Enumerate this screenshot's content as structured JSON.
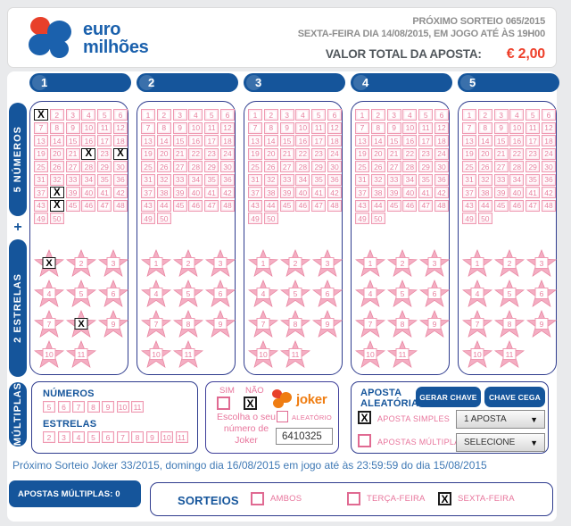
{
  "header": {
    "logo_line1": "euro",
    "logo_line2": "milhões",
    "next_draw": "PRÓXIMO SORTEIO 065/2015",
    "draw_info": "SEXTA-FEIRA DIA 14/08/2015, EM JOGO ATÉ ÀS 19H00",
    "total_label": "VALOR TOTAL DA APOSTA:",
    "total_value": "€ 2,00"
  },
  "sidebar": {
    "numbers_label": "5 NÚMEROS",
    "plus": "+",
    "stars_label": "2 ESTRELAS",
    "multiplas_label": "MÚLTIPLAS"
  },
  "board": {
    "numbers_max": 50,
    "numbers_per_row": 6,
    "stars_max": 11,
    "stars_per_row": 3,
    "mark_glyph": "X",
    "columns": [
      {
        "label": "1",
        "marked_numbers": [
          1,
          22,
          24,
          38,
          44
        ],
        "marked_stars": [
          1,
          8
        ]
      },
      {
        "label": "2",
        "marked_numbers": [],
        "marked_stars": []
      },
      {
        "label": "3",
        "marked_numbers": [],
        "marked_stars": []
      },
      {
        "label": "4",
        "marked_numbers": [],
        "marked_stars": []
      },
      {
        "label": "5",
        "marked_numbers": [],
        "marked_stars": []
      }
    ]
  },
  "multiplas_box": {
    "numbers_title": "NÚMEROS",
    "numbers": [
      5,
      6,
      7,
      8,
      9,
      10,
      11
    ],
    "stars_title": "ESTRELAS",
    "stars": [
      2,
      3,
      4,
      5,
      6,
      7,
      8,
      9,
      10,
      11
    ]
  },
  "joker_box": {
    "sim_label": "SIM",
    "nao_label": "NÃO",
    "sim_checked": false,
    "nao_checked": true,
    "logo_text": "joker",
    "choose_text": "Escolha o seu número de Joker",
    "aleatorio_label": "ALEATÓRIO",
    "aleatorio_checked": false,
    "joker_number": "6410325"
  },
  "aposta_box": {
    "title_line1": "APOSTA",
    "title_line2": "ALEATÓRIA",
    "gerar_chave": "GERAR CHAVE",
    "chave_cega": "CHAVE CEGA",
    "simples_label": "APOSTA SIMPLES",
    "simples_checked": true,
    "simples_value": "1 APOSTA",
    "multiplas_label": "APOSTAS MÚLTIPLAS",
    "multiplas_checked": false,
    "multiplas_value": "SELECIONE",
    "dropdown_arrow": "▼"
  },
  "joker_next_line": "Próximo Sorteio Joker 33/2015, domingo dia 16/08/2015 em jogo até às 23:59:59 do dia 15/08/2015",
  "footer": {
    "badge": "APOSTAS MÚLTIPLAS: 0",
    "sorteios_label": "SORTEIOS",
    "options": [
      {
        "label": "AMBOS",
        "checked": false
      },
      {
        "label": "TERÇA-FEIRA",
        "checked": false
      },
      {
        "label": "SEXTA-FEIRA",
        "checked": true
      }
    ]
  },
  "colors": {
    "blue": "#15559b",
    "logo_blue": "#1b61ad",
    "logo_red": "#e8402a",
    "navy_border": "#2f3c8e",
    "pink_border": "#ef9ab2",
    "pink_text": "#e8809f",
    "pink_label": "#e8759c",
    "value_red": "#ee3f2a",
    "joker_orange": "#ef7d12",
    "date_blue": "#3f79b5",
    "gray_text": "#8f8f8f"
  }
}
